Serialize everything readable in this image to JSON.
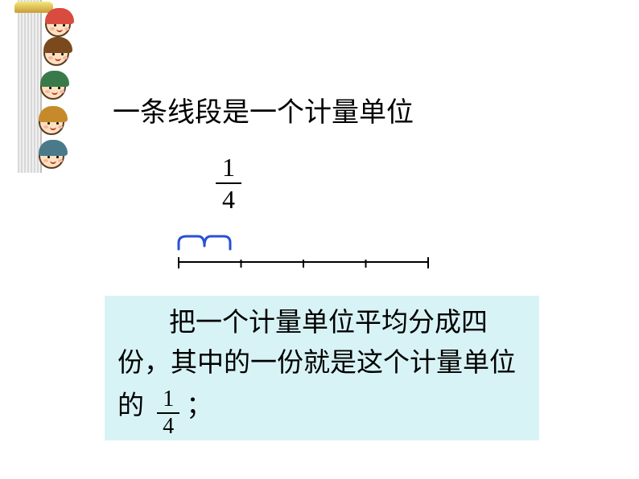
{
  "title": "一条线段是一个计量单位",
  "fraction1": {
    "numerator": "1",
    "denominator": "4"
  },
  "brace": {
    "color": "#2a4fd8",
    "stroke_width": 3,
    "width": 68,
    "height": 22
  },
  "segment": {
    "total_width": 310,
    "divisions": 4,
    "stroke": "#000000",
    "stroke_width": 2,
    "tick_height": 12
  },
  "explanation": {
    "bg_color": "#d8f3f5",
    "part1": "把一个计量单位平均分成四份，其中的一份就是这个计量单位的",
    "part2": "；",
    "fraction": {
      "numerator": "1",
      "denominator": "4"
    }
  },
  "decoration": {
    "children_hair_colors": [
      "#d94a3f",
      "#7a4a1e",
      "#3a7a4a",
      "#c68a2a",
      "#4a7a8a"
    ]
  }
}
